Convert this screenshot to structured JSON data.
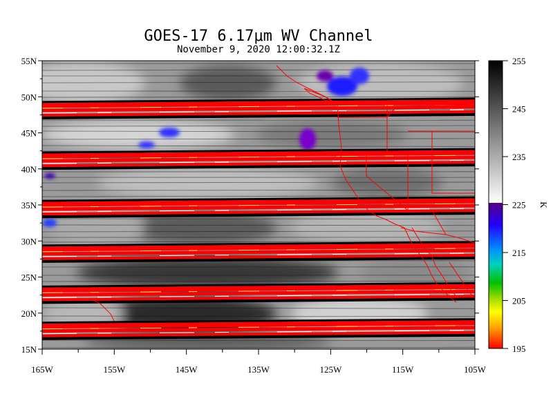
{
  "title": "GOES-17  6.17μm WV Channel",
  "subtitle": "November  9,  2020 12:00:32.1Z",
  "lat_labels": [
    "55N",
    "50N",
    "45N",
    "40N",
    "35N",
    "30N",
    "25N",
    "20N",
    "15N"
  ],
  "lon_labels": [
    "165W",
    "155W",
    "145W",
    "135W",
    "125W",
    "115W",
    "105W"
  ],
  "colorbar": {
    "unit": "K",
    "tick_labels": [
      "255",
      "245",
      "235",
      "225",
      "215",
      "205",
      "195"
    ],
    "range": [
      195,
      255
    ],
    "gray_range": [
      225,
      255
    ],
    "color_range": [
      195,
      225
    ]
  },
  "colors": {
    "band_red": "#ff0000",
    "band_black": "#000000",
    "border_red": "#ff0000",
    "moist_blue": "#1a1aff",
    "moist_purple": "#6600aa"
  },
  "map_extent": {
    "lon": [
      -165,
      -105
    ],
    "lat": [
      15,
      55
    ]
  },
  "band_lats": [
    48.5,
    41.5,
    34.8,
    28.6,
    22.9,
    17.9
  ]
}
